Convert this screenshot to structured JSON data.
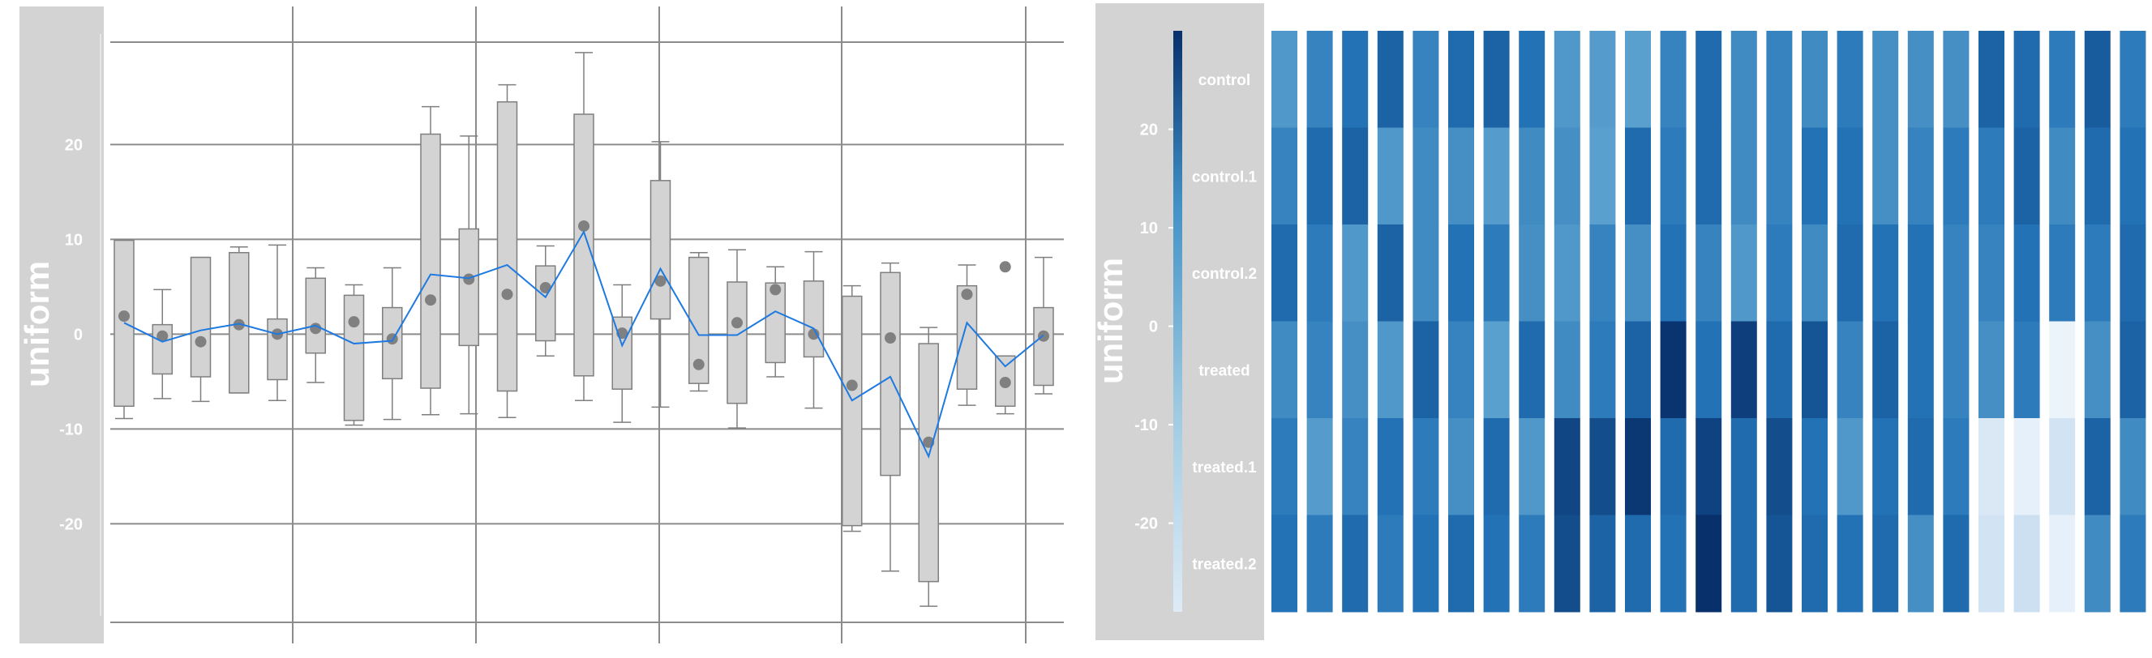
{
  "chart_data": [
    {
      "type": "box",
      "ylabel": "uniform",
      "ylim": [
        -31,
        32
      ],
      "yticks": [
        -20,
        -10,
        0,
        10,
        20
      ],
      "ytick_labels": [
        "-20",
        "-10",
        "0",
        "10",
        "20"
      ],
      "grid": true,
      "box_color": "#d3d3d3",
      "line_color": "#1e7ae0",
      "point_color": "#808080",
      "boxes": [
        {
          "wmin": -8.9,
          "q1": -7.6,
          "q3": 9.9,
          "wmax": 9.9
        },
        {
          "wmin": -6.8,
          "q1": -4.2,
          "q3": 1.0,
          "wmax": 4.7
        },
        {
          "wmin": -7.1,
          "q1": -4.5,
          "q3": 8.1,
          "wmax": 8.1
        },
        {
          "wmin": -6.2,
          "q1": -6.2,
          "q3": 8.6,
          "wmax": 9.2
        },
        {
          "wmin": -7.0,
          "q1": -4.8,
          "q3": 1.6,
          "wmax": 9.4
        },
        {
          "wmin": -5.1,
          "q1": -2.0,
          "q3": 5.9,
          "wmax": 7.0
        },
        {
          "wmin": -9.6,
          "q1": -9.1,
          "q3": 4.1,
          "wmax": 5.2
        },
        {
          "wmin": -9.0,
          "q1": -4.7,
          "q3": 2.8,
          "wmax": 7.0
        },
        {
          "wmin": -8.5,
          "q1": -5.7,
          "q3": 21.1,
          "wmax": 24.0
        },
        {
          "wmin": -8.4,
          "q1": -1.2,
          "q3": 11.1,
          "wmax": 20.9
        },
        {
          "wmin": -8.8,
          "q1": -6.0,
          "q3": 24.5,
          "wmax": 26.3
        },
        {
          "wmin": -2.3,
          "q1": -0.7,
          "q3": 7.2,
          "wmax": 9.3
        },
        {
          "wmin": -7.0,
          "q1": -4.4,
          "q3": 23.2,
          "wmax": 29.7
        },
        {
          "wmin": -9.3,
          "q1": -5.8,
          "q3": 1.8,
          "wmax": 5.2
        },
        {
          "wmin": -7.7,
          "q1": 1.6,
          "q3": 16.2,
          "wmax": 20.3
        },
        {
          "wmin": -6.0,
          "q1": -5.2,
          "q3": 8.1,
          "wmax": 8.6
        },
        {
          "wmin": -9.9,
          "q1": -7.3,
          "q3": 5.5,
          "wmax": 8.9
        },
        {
          "wmin": -4.5,
          "q1": -3.0,
          "q3": 5.4,
          "wmax": 7.1
        },
        {
          "wmin": -7.8,
          "q1": -2.4,
          "q3": 5.6,
          "wmax": 8.7
        },
        {
          "wmin": -20.8,
          "q1": -20.2,
          "q3": 4.0,
          "wmax": 5.1
        },
        {
          "wmin": -25.0,
          "q1": -14.9,
          "q3": 6.5,
          "wmax": 7.5
        },
        {
          "wmin": -28.7,
          "q1": -26.1,
          "q3": -1.0,
          "wmax": 0.7
        },
        {
          "wmin": -7.5,
          "q1": -5.8,
          "q3": 5.1,
          "wmax": 7.3
        },
        {
          "wmin": -8.4,
          "q1": -7.6,
          "q3": -2.3,
          "wmax": -2.3
        },
        {
          "wmin": -6.3,
          "q1": -5.4,
          "q3": 2.8,
          "wmax": 8.1
        }
      ],
      "mean_points": [
        1.9,
        -0.2,
        -0.8,
        1.0,
        0.0,
        0.6,
        1.3,
        -0.5,
        3.6,
        5.8,
        4.2,
        4.9,
        11.4,
        0.1,
        5.6,
        -3.2,
        1.2,
        4.7,
        0.0,
        -5.4,
        -0.4,
        -11.4,
        4.2,
        -5.1,
        -0.2
      ],
      "outliers": [
        {
          "box": 23,
          "value": 7.1
        }
      ],
      "line": [
        1.2,
        -0.8,
        0.4,
        1.1,
        0.0,
        0.9,
        -1.0,
        -0.7,
        6.3,
        5.9,
        7.3,
        3.9,
        10.8,
        -1.2,
        6.9,
        -0.1,
        -0.1,
        2.4,
        0.6,
        -7.0,
        -4.5,
        -12.9,
        1.2,
        -3.4,
        -0.1
      ]
    },
    {
      "type": "heatmap",
      "ylabel": "uniform",
      "colorbar_ticks": [
        -20,
        -10,
        0,
        10,
        20
      ],
      "colorbar_tick_labels": [
        "-20",
        "-10",
        "0",
        "10",
        "20"
      ],
      "colorbar_range": [
        -29,
        30
      ],
      "row_labels": [
        "control",
        "control.1",
        "control.2",
        "treated",
        "treated.1",
        "treated.2"
      ],
      "colormap": "Blues",
      "values": [
        [
          3,
          8,
          12,
          16,
          8,
          14,
          16,
          12,
          3,
          2,
          1,
          8,
          14,
          6,
          8,
          6,
          10,
          5,
          5,
          5,
          16,
          14,
          10,
          18,
          10,
          10
        ],
        [
          8,
          14,
          16,
          3,
          6,
          5,
          2,
          6,
          5,
          1,
          14,
          10,
          14,
          6,
          8,
          12,
          12,
          5,
          8,
          10,
          10,
          16,
          6,
          14,
          12,
          8
        ],
        [
          14,
          10,
          3,
          16,
          6,
          12,
          10,
          5,
          3,
          8,
          5,
          12,
          8,
          3,
          10,
          6,
          14,
          12,
          12,
          8,
          8,
          12,
          10,
          10,
          14,
          18
        ],
        [
          6,
          8,
          5,
          3,
          16,
          8,
          1,
          14,
          6,
          10,
          16,
          29,
          12,
          26,
          14,
          20,
          8,
          16,
          12,
          8,
          5,
          10,
          -26,
          5,
          16,
          5
        ],
        [
          10,
          2,
          8,
          12,
          10,
          5,
          14,
          3,
          24,
          22,
          28,
          14,
          25,
          14,
          22,
          12,
          3,
          12,
          14,
          10,
          -22,
          -25,
          -20,
          16,
          6,
          8
        ],
        [
          12,
          10,
          14,
          10,
          12,
          14,
          12,
          10,
          22,
          16,
          14,
          12,
          30,
          14,
          20,
          14,
          12,
          14,
          5,
          14,
          -20,
          -19,
          -25,
          6,
          10,
          5
        ]
      ]
    }
  ]
}
